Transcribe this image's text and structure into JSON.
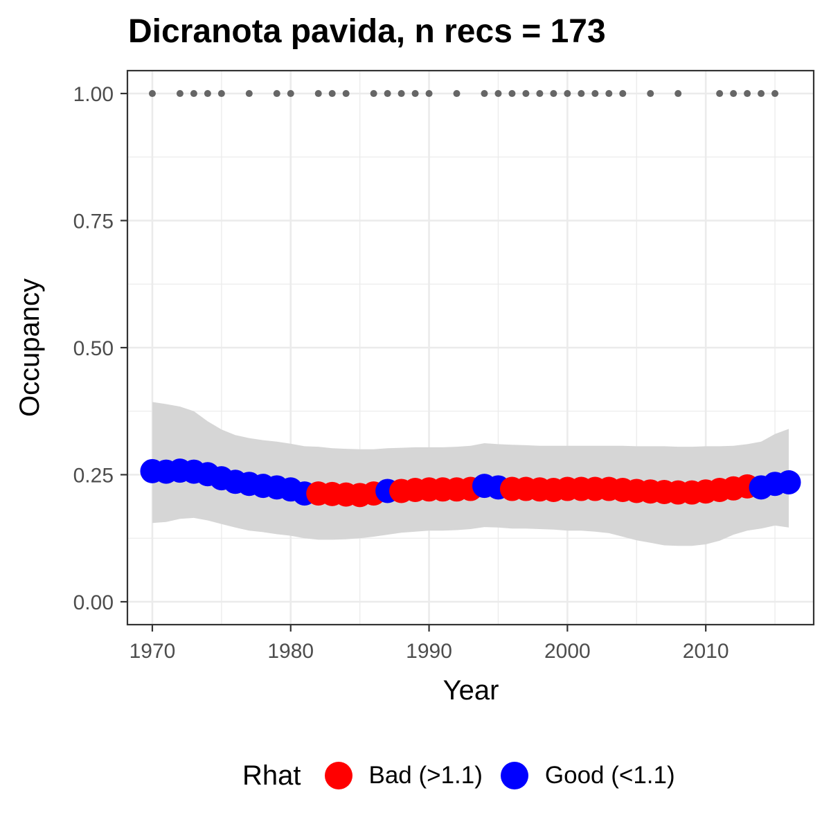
{
  "chart_data": {
    "type": "line",
    "title": "Dicranota pavida, n recs = 173",
    "xlabel": "Year",
    "ylabel": "Occupancy",
    "xlim": [
      1968.2,
      2017.8
    ],
    "ylim": [
      -0.045,
      1.045
    ],
    "x_ticks": [
      1970,
      1980,
      1990,
      2000,
      2010
    ],
    "x_tick_labels": [
      "1970",
      "1980",
      "1990",
      "2000",
      "2010"
    ],
    "y_ticks": [
      0,
      0.25,
      0.5,
      0.75,
      1.0
    ],
    "y_tick_labels": [
      "0.00",
      "0.25",
      "0.50",
      "0.75",
      "1.00"
    ],
    "grid": true,
    "legend_position": "bottom",
    "legend_title": "Rhat",
    "legend_entries": [
      {
        "key": "bad",
        "label": "Bad (>1.1)",
        "color": "#ff0000"
      },
      {
        "key": "good",
        "label": "Good (<1.1)",
        "color": "#0000ff"
      }
    ],
    "colors": {
      "bad": "#ff0000",
      "good": "#0000ff",
      "ribbon": "#d6d6d6",
      "records": "#666666",
      "grid": "#ebebeb",
      "axis": "#333333",
      "tick_text": "#4d4d4d"
    },
    "series": [
      {
        "x": [
          1970,
          1971,
          1972,
          1973,
          1974,
          1975,
          1976,
          1977,
          1978,
          1979,
          1980,
          1981,
          1982,
          1983,
          1984,
          1985,
          1986,
          1987,
          1988,
          1989,
          1990,
          1991,
          1992,
          1993,
          1994,
          1995,
          1996,
          1997,
          1998,
          1999,
          2000,
          2001,
          2002,
          2003,
          2004,
          2005,
          2006,
          2007,
          2008,
          2009,
          2010,
          2011,
          2012,
          2013,
          2014,
          2015,
          2016
        ],
        "mean": [
          0.257,
          0.256,
          0.258,
          0.256,
          0.251,
          0.243,
          0.236,
          0.232,
          0.228,
          0.225,
          0.221,
          0.213,
          0.213,
          0.212,
          0.211,
          0.21,
          0.213,
          0.218,
          0.218,
          0.22,
          0.221,
          0.221,
          0.221,
          0.222,
          0.228,
          0.225,
          0.222,
          0.222,
          0.221,
          0.22,
          0.222,
          0.222,
          0.222,
          0.222,
          0.22,
          0.218,
          0.217,
          0.216,
          0.215,
          0.215,
          0.217,
          0.22,
          0.223,
          0.227,
          0.225,
          0.232,
          0.235
        ],
        "lower": [
          0.155,
          0.157,
          0.163,
          0.165,
          0.16,
          0.153,
          0.146,
          0.14,
          0.137,
          0.133,
          0.13,
          0.125,
          0.122,
          0.122,
          0.123,
          0.125,
          0.128,
          0.132,
          0.136,
          0.138,
          0.14,
          0.14,
          0.141,
          0.143,
          0.147,
          0.146,
          0.144,
          0.144,
          0.143,
          0.142,
          0.14,
          0.14,
          0.138,
          0.135,
          0.128,
          0.121,
          0.116,
          0.111,
          0.11,
          0.11,
          0.113,
          0.12,
          0.132,
          0.14,
          0.144,
          0.15,
          0.146
        ],
        "upper": [
          0.393,
          0.389,
          0.384,
          0.375,
          0.355,
          0.339,
          0.328,
          0.322,
          0.318,
          0.315,
          0.311,
          0.306,
          0.305,
          0.302,
          0.301,
          0.3,
          0.3,
          0.302,
          0.303,
          0.304,
          0.304,
          0.304,
          0.305,
          0.307,
          0.312,
          0.31,
          0.309,
          0.308,
          0.307,
          0.307,
          0.307,
          0.307,
          0.307,
          0.307,
          0.307,
          0.306,
          0.306,
          0.306,
          0.305,
          0.305,
          0.306,
          0.306,
          0.307,
          0.31,
          0.315,
          0.33,
          0.34
        ],
        "rhat": [
          "good",
          "good",
          "good",
          "good",
          "good",
          "good",
          "good",
          "good",
          "good",
          "good",
          "good",
          "good",
          "bad",
          "bad",
          "bad",
          "bad",
          "bad",
          "good",
          "bad",
          "bad",
          "bad",
          "bad",
          "bad",
          "bad",
          "good",
          "good",
          "bad",
          "bad",
          "bad",
          "bad",
          "bad",
          "bad",
          "bad",
          "bad",
          "bad",
          "bad",
          "bad",
          "bad",
          "bad",
          "bad",
          "bad",
          "bad",
          "bad",
          "bad",
          "good",
          "good",
          "good"
        ]
      }
    ],
    "record_years": [
      1970,
      1972,
      1973,
      1974,
      1975,
      1977,
      1979,
      1980,
      1982,
      1983,
      1984,
      1986,
      1987,
      1988,
      1989,
      1990,
      1992,
      1994,
      1995,
      1996,
      1997,
      1998,
      1999,
      2000,
      2001,
      2002,
      2003,
      2004,
      2006,
      2008,
      2011,
      2012,
      2013,
      2014,
      2015
    ],
    "record_value": 1.0
  }
}
